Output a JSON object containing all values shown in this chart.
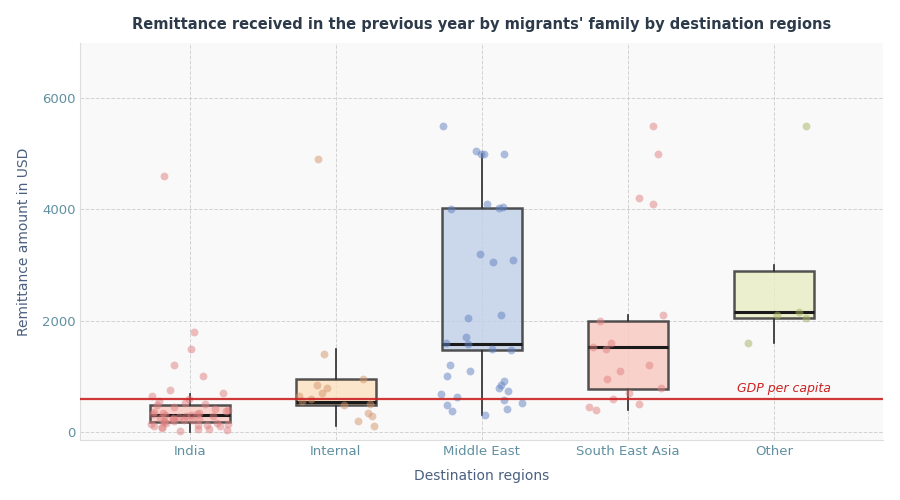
{
  "title": "Remittance received in the previous year by migrants' family by destination regions",
  "xlabel": "Destination regions",
  "ylabel": "Remittance amount in USD",
  "gdp_per_capita": 600,
  "gdp_label": "GDP per capita",
  "ylim": [
    -150,
    7000
  ],
  "yticks": [
    0,
    2000,
    4000,
    6000
  ],
  "categories": [
    "India",
    "Internal",
    "Middle East",
    "South East Asia",
    "Other"
  ],
  "box_colors": [
    "#f9c8c0",
    "#fce0c0",
    "#c0cfe8",
    "#f9c8c0",
    "#e8edc4"
  ],
  "dot_colors": [
    "#e08080",
    "#d4956a",
    "#6080c0",
    "#e08080",
    "#a8b060"
  ],
  "box_stats": {
    "India": {
      "q1": 180,
      "median": 300,
      "q3": 480,
      "whislo": 0,
      "whishi": 680
    },
    "Internal": {
      "q1": 480,
      "median": 540,
      "q3": 960,
      "whislo": 100,
      "whishi": 1500
    },
    "Middle East": {
      "q1": 1480,
      "median": 1580,
      "q3": 4020,
      "whislo": 300,
      "whishi": 5000
    },
    "South East Asia": {
      "q1": 780,
      "median": 1530,
      "q3": 2000,
      "whislo": 400,
      "whishi": 2100
    },
    "Other": {
      "q1": 2050,
      "median": 2150,
      "q3": 2900,
      "whislo": 1600,
      "whishi": 3000
    }
  },
  "scatter_data": {
    "India": [
      20,
      40,
      50,
      60,
      80,
      90,
      100,
      110,
      120,
      130,
      140,
      150,
      160,
      170,
      180,
      190,
      200,
      210,
      220,
      230,
      240,
      250,
      260,
      270,
      280,
      290,
      300,
      310,
      320,
      330,
      340,
      350,
      360,
      380,
      400,
      420,
      450,
      480,
      500,
      520,
      550,
      600,
      650,
      700,
      750,
      1000,
      1200,
      1500,
      1800,
      4600
    ],
    "Internal": [
      100,
      200,
      280,
      350,
      480,
      500,
      550,
      600,
      650,
      700,
      800,
      850,
      950,
      1400,
      4900
    ],
    "Middle East": [
      300,
      380,
      420,
      480,
      530,
      580,
      630,
      680,
      730,
      800,
      850,
      920,
      1000,
      1100,
      1200,
      1480,
      1500,
      1580,
      1600,
      1700,
      2050,
      2100,
      3050,
      3100,
      3200,
      4000,
      4020,
      4050,
      4100,
      5000,
      5000,
      5000,
      5050,
      5500
    ],
    "South East Asia": [
      400,
      450,
      500,
      600,
      700,
      800,
      950,
      1100,
      1200,
      1500,
      1530,
      1600,
      2000,
      2100,
      4100,
      4200,
      5000,
      5500
    ],
    "Other": [
      1600,
      2050,
      2100,
      2150,
      5500
    ]
  },
  "jitter_seed": 42,
  "background_color": "#ffffff",
  "plot_bg_color": "#f9f9f9",
  "grid_color": "#c8c8c8",
  "title_color": "#2d3a4a",
  "axis_label_color": "#4a6080",
  "tick_color": "#6090a0",
  "gdp_line_color": "#cc2222",
  "gdp_label_color": "#cc2222",
  "box_edge_color": "#2a2a2a",
  "whisker_color": "#2a2a2a",
  "median_color": "#1a1a1a"
}
